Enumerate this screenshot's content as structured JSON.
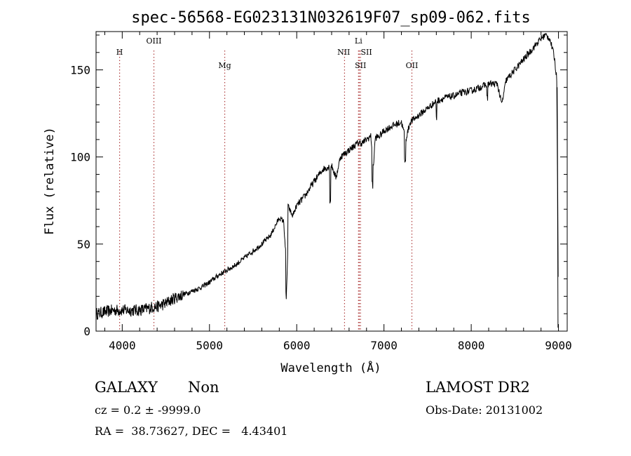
{
  "chart_data": {
    "type": "line",
    "title": "spec-56568-EG023131N032619F07_sp09-062.fits",
    "xlabel": "Wavelength (Å)",
    "ylabel": "Flux (relative)",
    "xlim": [
      3700,
      9100
    ],
    "ylim": [
      0,
      172
    ],
    "xticks": [
      4000,
      5000,
      6000,
      7000,
      8000,
      9000
    ],
    "yticks": [
      0,
      50,
      100,
      150
    ],
    "series": [
      {
        "x": [
          3700,
          3800,
          3900,
          4000,
          4100,
          4200,
          4300,
          4350,
          4400,
          4500,
          4600,
          4700,
          4800,
          4900,
          5000,
          5100,
          5200,
          5300,
          5400,
          5500,
          5600,
          5700,
          5800,
          5850,
          5880,
          5900,
          5950,
          6000,
          6100,
          6200,
          6300,
          6400,
          6450,
          6500,
          6550,
          6600,
          6650,
          6700,
          6750,
          6800,
          6850,
          6880,
          6900,
          6950,
          7000,
          7100,
          7200,
          7250,
          7300,
          7400,
          7500,
          7600,
          7700,
          7800,
          7900,
          8000,
          8100,
          8200,
          8300,
          8350,
          8400,
          8500,
          8600,
          8700,
          8800,
          8850,
          8900,
          8950,
          8980,
          9000
        ],
        "y": [
          10,
          11,
          12,
          12,
          12,
          12,
          13,
          14,
          14,
          16,
          19,
          21,
          23,
          25,
          28,
          32,
          35,
          38,
          42,
          46,
          50,
          55,
          65,
          63,
          40,
          72,
          66,
          72,
          78,
          86,
          93,
          95,
          88,
          100,
          102,
          104,
          106,
          108,
          108,
          110,
          112,
          95,
          111,
          112,
          115,
          118,
          120,
          110,
          120,
          124,
          128,
          132,
          134,
          135,
          137,
          138,
          140,
          142,
          142,
          130,
          144,
          150,
          156,
          162,
          168,
          170,
          168,
          158,
          145,
          5
        ]
      }
    ],
    "lines": [
      {
        "label": "H",
        "x": 3970,
        "color": "#b04040"
      },
      {
        "label": "OIII",
        "x": 4363,
        "color": "#b04040"
      },
      {
        "label": "Mg",
        "x": 5175,
        "color": "#b04040"
      },
      {
        "label": "NII",
        "x": 6548,
        "color": "#b04040"
      },
      {
        "label": "SII",
        "x": 6717,
        "color": "#b04040"
      },
      {
        "label": "Li",
        "x": 6708,
        "color": "#b04040"
      },
      {
        "label": "SII",
        "x": 6731,
        "color": "#b04040"
      },
      {
        "label": "OII",
        "x": 7320,
        "color": "#b04040"
      }
    ],
    "grid": false,
    "legend": "none"
  },
  "info": {
    "class": "GALAXY",
    "subclass": "Non",
    "survey": "LAMOST DR2",
    "cz": "cz = 0.2 ± -9999.0",
    "obs_date": "Obs-Date: 20131002",
    "radec": "RA =  38.73627, DEC =   4.43401"
  }
}
